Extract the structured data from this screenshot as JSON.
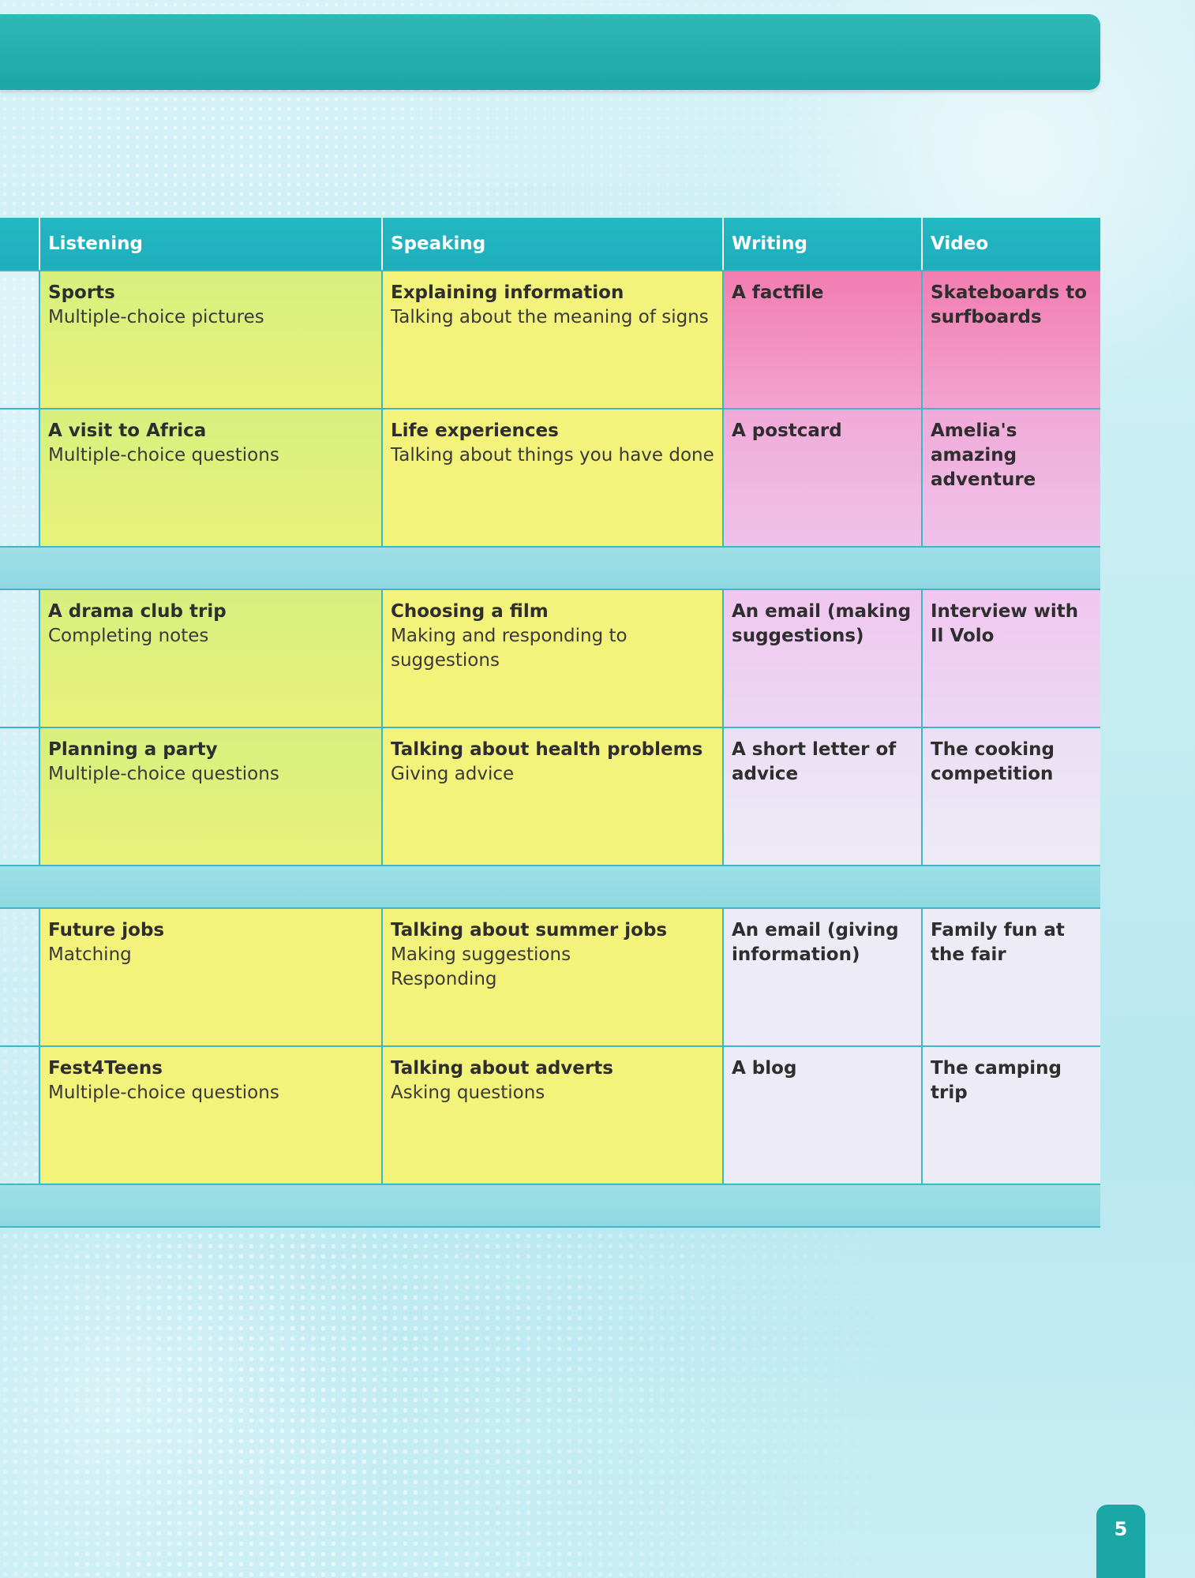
{
  "table": {
    "headers": [
      "Listening",
      "Speaking",
      "Writing",
      "Video"
    ],
    "rows": [
      {
        "listening": {
          "title": "Sports",
          "detail": "Multiple-choice pictures"
        },
        "speaking": {
          "title": "Explaining information",
          "detail": "Talking about the meaning of signs"
        },
        "writing": "A factfile",
        "video": "Skateboards to surfboards"
      },
      {
        "listening": {
          "title": "A visit to Africa",
          "detail": "Multiple-choice questions"
        },
        "speaking": {
          "title": "Life experiences",
          "detail": "Talking about things you have done"
        },
        "writing": "A postcard",
        "video": "Amelia's amazing adventure"
      },
      {
        "listening": {
          "title": "A drama club trip",
          "detail": "Completing notes"
        },
        "speaking": {
          "title": "Choosing a film",
          "detail": "Making and responding to suggestions"
        },
        "writing": "An email (making suggestions)",
        "video": "Interview with Il Volo"
      },
      {
        "listening": {
          "title": "Planning a party",
          "detail": "Multiple-choice questions"
        },
        "speaking": {
          "title": "Talking about health problems",
          "detail": "Giving advice"
        },
        "writing": "A short letter of advice",
        "video": "The cooking competition"
      },
      {
        "listening": {
          "title": "Future jobs",
          "detail": "Matching"
        },
        "speaking": {
          "title": "Talking about summer jobs",
          "detail": "Making suggestions\nResponding"
        },
        "writing": "An email (giving information)",
        "video": "Family fun at the fair"
      },
      {
        "listening": {
          "title": "Fest4Teens",
          "detail": "Multiple-choice questions"
        },
        "speaking": {
          "title": "Talking about adverts",
          "detail": "Asking questions"
        },
        "writing": "A blog",
        "video": "The camping trip"
      }
    ]
  },
  "page_number": "5",
  "colors": {
    "banner": "#1aa7a6",
    "header": "#23b8c3",
    "listening_cell": "#e8f27a",
    "speaking_cell": "#f3f27a",
    "writing_pink": "#f27db1"
  }
}
